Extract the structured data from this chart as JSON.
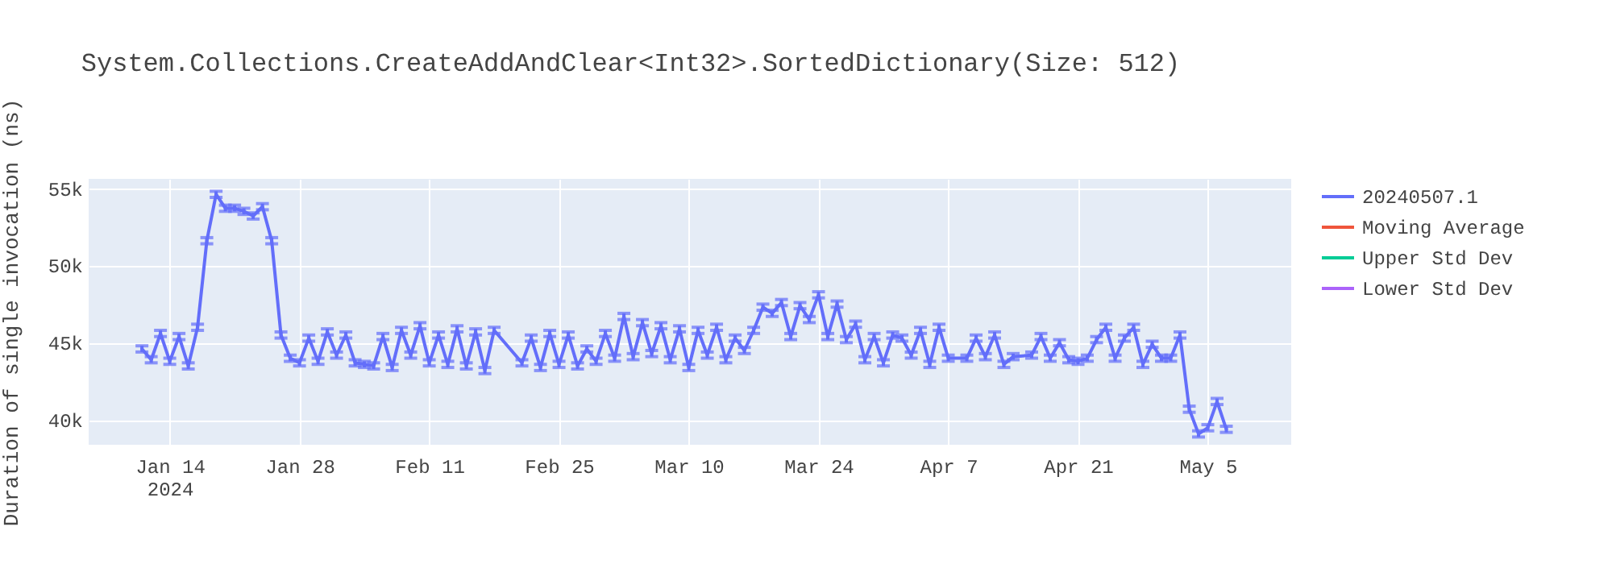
{
  "chart_data": {
    "type": "line",
    "title": "System.Collections.CreateAddAndClear<Int32>.SortedDictionary(Size: 512)",
    "ylabel": "Duration of single invocation (ns)",
    "x": [
      "2024-01-11",
      "2024-01-12",
      "2024-01-13",
      "2024-01-14",
      "2024-01-15",
      "2024-01-16",
      "2024-01-17",
      "2024-01-18",
      "2024-01-19",
      "2024-01-20",
      "2024-01-21",
      "2024-01-22",
      "2024-01-23",
      "2024-01-24",
      "2024-01-25",
      "2024-01-26",
      "2024-01-27",
      "2024-01-28",
      "2024-01-29",
      "2024-01-30",
      "2024-01-31",
      "2024-02-01",
      "2024-02-02",
      "2024-02-03",
      "2024-02-04",
      "2024-02-05",
      "2024-02-06",
      "2024-02-07",
      "2024-02-08",
      "2024-02-09",
      "2024-02-10",
      "2024-02-11",
      "2024-02-12",
      "2024-02-13",
      "2024-02-14",
      "2024-02-15",
      "2024-02-16",
      "2024-02-17",
      "2024-02-18",
      "2024-02-21",
      "2024-02-22",
      "2024-02-23",
      "2024-02-24",
      "2024-02-25",
      "2024-02-26",
      "2024-02-27",
      "2024-02-28",
      "2024-02-29",
      "2024-03-01",
      "2024-03-02",
      "2024-03-03",
      "2024-03-04",
      "2024-03-05",
      "2024-03-06",
      "2024-03-07",
      "2024-03-08",
      "2024-03-09",
      "2024-03-10",
      "2024-03-11",
      "2024-03-12",
      "2024-03-13",
      "2024-03-14",
      "2024-03-15",
      "2024-03-16",
      "2024-03-17",
      "2024-03-18",
      "2024-03-19",
      "2024-03-20",
      "2024-03-21",
      "2024-03-22",
      "2024-03-23",
      "2024-03-24",
      "2024-03-25",
      "2024-03-26",
      "2024-03-27",
      "2024-03-28",
      "2024-03-29",
      "2024-03-30",
      "2024-03-31",
      "2024-04-01",
      "2024-04-02",
      "2024-04-03",
      "2024-04-04",
      "2024-04-05",
      "2024-04-06",
      "2024-04-07",
      "2024-04-09",
      "2024-04-10",
      "2024-04-11",
      "2024-04-12",
      "2024-04-13",
      "2024-04-14",
      "2024-04-16",
      "2024-04-17",
      "2024-04-18",
      "2024-04-19",
      "2024-04-20",
      "2024-04-21",
      "2024-04-22",
      "2024-04-23",
      "2024-04-24",
      "2024-04-25",
      "2024-04-26",
      "2024-04-27",
      "2024-04-28",
      "2024-04-29",
      "2024-04-30",
      "2024-05-01",
      "2024-05-02",
      "2024-05-03",
      "2024-05-04",
      "2024-05-05",
      "2024-05-06",
      "2024-05-07"
    ],
    "series": [
      {
        "name": "20240507.1",
        "color": "#636efa",
        "values": [
          44600,
          43900,
          45600,
          43800,
          45400,
          43500,
          46000,
          51600,
          54600,
          53700,
          53700,
          53500,
          53200,
          53800,
          51600,
          45500,
          44000,
          43700,
          45300,
          43800,
          45700,
          44200,
          45500,
          43700,
          43600,
          43500,
          45400,
          43400,
          45800,
          44200,
          46100,
          43700,
          45500,
          43600,
          45900,
          43500,
          45700,
          43200,
          45800,
          43700,
          45300,
          43400,
          45600,
          43600,
          45500,
          43500,
          44600,
          43800,
          45600,
          44000,
          46700,
          44100,
          46300,
          44300,
          46100,
          43900,
          45900,
          43400,
          45800,
          44200,
          46000,
          43900,
          45300,
          44500,
          45800,
          47300,
          46900,
          47600,
          45400,
          47400,
          46500,
          48100,
          45400,
          47500,
          45200,
          46200,
          43900,
          45400,
          43700,
          45500,
          45300,
          44200,
          45800,
          43600,
          46000,
          44000,
          44000,
          45300,
          44100,
          45500,
          43600,
          44100,
          44200,
          45400,
          44000,
          45000,
          43900,
          43800,
          44000,
          45200,
          46000,
          44000,
          45300,
          46000,
          43600,
          44900,
          44000,
          44000,
          45500,
          40700,
          39100,
          39500,
          41200,
          39400
        ],
        "errors": [
          200,
          200,
          200,
          200,
          200,
          200,
          200,
          200,
          200,
          200,
          200,
          200,
          200,
          200,
          200,
          200,
          200,
          200,
          200,
          200,
          200,
          200,
          200,
          200,
          200,
          200,
          200,
          200,
          200,
          200,
          200,
          200,
          200,
          200,
          200,
          200,
          200,
          200,
          200,
          200,
          200,
          200,
          200,
          200,
          200,
          200,
          200,
          200,
          200,
          200,
          200,
          200,
          200,
          200,
          200,
          200,
          200,
          200,
          200,
          200,
          200,
          200,
          200,
          200,
          200,
          200,
          200,
          200,
          200,
          200,
          200,
          200,
          200,
          200,
          200,
          200,
          200,
          200,
          200,
          200,
          200,
          200,
          200,
          200,
          200,
          200,
          200,
          200,
          200,
          200,
          200,
          200,
          200,
          200,
          200,
          200,
          200,
          200,
          200,
          200,
          200,
          200,
          200,
          200,
          200,
          200,
          200,
          200,
          200,
          200,
          200,
          200,
          200,
          200
        ]
      },
      {
        "name": "Moving Average",
        "color": "#ef553b",
        "values": [
          null,
          null,
          null,
          null,
          null,
          null,
          null,
          null,
          null,
          null,
          null,
          null,
          null,
          null,
          null,
          null,
          null,
          null,
          null,
          null,
          null,
          null,
          null,
          null,
          null,
          null,
          null,
          null,
          null,
          null,
          null,
          null,
          null,
          null,
          null,
          null,
          null,
          null,
          null,
          null,
          null,
          null,
          null,
          null,
          null,
          null,
          null,
          null,
          null,
          null,
          null,
          null,
          null,
          null,
          null,
          null,
          null,
          null,
          null,
          null,
          null,
          null,
          null,
          null,
          null,
          null,
          null,
          null,
          null,
          null,
          null,
          null,
          null,
          null,
          null,
          null,
          null,
          null,
          null,
          null,
          null,
          null,
          null,
          null,
          null,
          null,
          null,
          null,
          null,
          null,
          null,
          null,
          null,
          null,
          null,
          null,
          null,
          null,
          null,
          null,
          null,
          null,
          null,
          null,
          null,
          null,
          null,
          null,
          null,
          null,
          null,
          null,
          null,
          null
        ]
      },
      {
        "name": "Upper Std Dev",
        "color": "#00cc96",
        "values": [
          null,
          null,
          null,
          null,
          null,
          null,
          null,
          null,
          null,
          null,
          null,
          null,
          null,
          null,
          null,
          null,
          null,
          null,
          null,
          null,
          null,
          null,
          null,
          null,
          null,
          null,
          null,
          null,
          null,
          null,
          null,
          null,
          null,
          null,
          null,
          null,
          null,
          null,
          null,
          null,
          null,
          null,
          null,
          null,
          null,
          null,
          null,
          null,
          null,
          null,
          null,
          null,
          null,
          null,
          null,
          null,
          null,
          null,
          null,
          null,
          null,
          null,
          null,
          null,
          null,
          null,
          null,
          null,
          null,
          null,
          null,
          null,
          null,
          null,
          null,
          null,
          null,
          null,
          null,
          null,
          null,
          null,
          null,
          null,
          null,
          null,
          null,
          null,
          null,
          null,
          null,
          null,
          null,
          null,
          null,
          null,
          null,
          null,
          null,
          null,
          null,
          null,
          null,
          null,
          null,
          null,
          null,
          null,
          null,
          null,
          null,
          null,
          null,
          null
        ]
      },
      {
        "name": "Lower Std Dev",
        "color": "#ab63fa",
        "values": [
          null,
          null,
          null,
          null,
          null,
          null,
          null,
          null,
          null,
          null,
          null,
          null,
          null,
          null,
          null,
          null,
          null,
          null,
          null,
          null,
          null,
          null,
          null,
          null,
          null,
          null,
          null,
          null,
          null,
          null,
          null,
          null,
          null,
          null,
          null,
          null,
          null,
          null,
          null,
          null,
          null,
          null,
          null,
          null,
          null,
          null,
          null,
          null,
          null,
          null,
          null,
          null,
          null,
          null,
          null,
          null,
          null,
          null,
          null,
          null,
          null,
          null,
          null,
          null,
          null,
          null,
          null,
          null,
          null,
          null,
          null,
          null,
          null,
          null,
          null,
          null,
          null,
          null,
          null,
          null,
          null,
          null,
          null,
          null,
          null,
          null,
          null,
          null,
          null,
          null,
          null,
          null,
          null,
          null,
          null,
          null,
          null,
          null,
          null,
          null,
          null,
          null,
          null,
          null,
          null,
          null,
          null,
          null,
          null,
          null,
          null,
          null,
          null,
          null
        ]
      }
    ],
    "xlim": [
      "2024-01-05T06:00",
      "2024-05-14"
    ],
    "xticks": [
      {
        "value": "2024-01-14",
        "label": "Jan 14\n2024"
      },
      {
        "value": "2024-01-28",
        "label": "Jan 28"
      },
      {
        "value": "2024-02-11",
        "label": "Feb 11"
      },
      {
        "value": "2024-02-25",
        "label": "Feb 25"
      },
      {
        "value": "2024-03-10",
        "label": "Mar 10"
      },
      {
        "value": "2024-03-24",
        "label": "Mar 24"
      },
      {
        "value": "2024-04-07",
        "label": "Apr 7"
      },
      {
        "value": "2024-04-21",
        "label": "Apr 21"
      },
      {
        "value": "2024-05-05",
        "label": "May 5"
      }
    ],
    "ylim": [
      38400,
      55600
    ],
    "yticks": [
      {
        "value": 40000,
        "label": "40k"
      },
      {
        "value": 45000,
        "label": "45k"
      },
      {
        "value": 50000,
        "label": "50k"
      },
      {
        "value": 55000,
        "label": "55k"
      }
    ],
    "grid": true,
    "legend": "right",
    "marker": "none",
    "line_style": "solid"
  }
}
